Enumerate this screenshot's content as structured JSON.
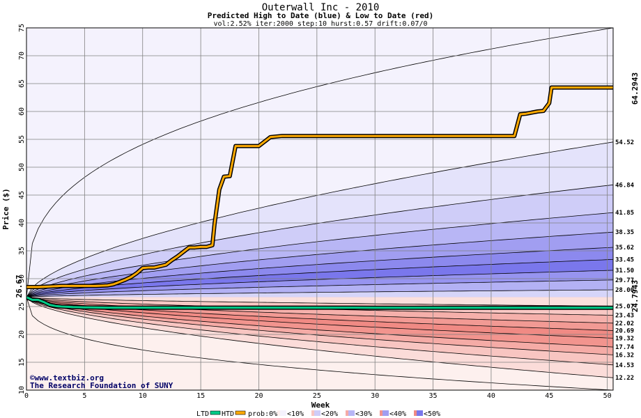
{
  "chart_data": {
    "type": "area",
    "title": "Outerwall Inc - 2010",
    "subtitle": "Predicted High to Date (blue) &  Low to Date (red)",
    "params": "vol:2.52% iter:2000 step:10 hurst:0.57 drift:0.07/0",
    "xlabel": "Week",
    "ylabel": "Price ($)",
    "xlim": [
      0,
      50.5
    ],
    "ylim": [
      10,
      75
    ],
    "xticks": [
      0,
      5,
      10,
      15,
      20,
      25,
      30,
      35,
      40,
      45,
      50
    ],
    "yticks": [
      10,
      15,
      20,
      25,
      30,
      35,
      40,
      45,
      50,
      55,
      60,
      65,
      70,
      75
    ],
    "grid": true,
    "start_price": 26.67,
    "start_label": "26.67",
    "high_to_date_label": "64.2943",
    "low_to_date_label": "24.7943",
    "percentile_labels": [
      "54.52",
      "46.84",
      "41.85",
      "38.35",
      "35.62",
      "33.45",
      "31.50",
      "29.77",
      "28.00",
      "25.07",
      "23.43",
      "22.02",
      "20.69",
      "19.32",
      "17.74",
      "16.32",
      "14.53",
      "12.22"
    ],
    "upper_bands": [
      {
        "name": "p1",
        "end": 75.0,
        "shape": 0.35,
        "color": "#f4f2fd"
      },
      {
        "name": "p2",
        "end": 54.52,
        "shape": 0.6,
        "color": "#e4e3fb"
      },
      {
        "name": "p3",
        "end": 46.84,
        "shape": 0.6,
        "color": "#cfcdf8"
      },
      {
        "name": "p4",
        "end": 41.85,
        "shape": 0.6,
        "color": "#b8b6f5"
      },
      {
        "name": "p5",
        "end": 38.35,
        "shape": 0.6,
        "color": "#a19ef1"
      },
      {
        "name": "p6",
        "end": 35.62,
        "shape": 0.6,
        "color": "#8c89ee"
      },
      {
        "name": "p7",
        "end": 33.45,
        "shape": 0.6,
        "color": "#7a77ec"
      },
      {
        "name": "p8",
        "end": 31.5,
        "shape": 0.6,
        "color": "#9794f0"
      },
      {
        "name": "p9",
        "end": 29.77,
        "shape": 0.6,
        "color": "#b3b1f4"
      },
      {
        "name": "p10",
        "end": 28.0,
        "shape": 0.6,
        "color": "#d6d5f9"
      }
    ],
    "lower_bands": [
      {
        "name": "q1",
        "end": 10.0,
        "shape": 0.35,
        "color": "#fdf0ee"
      },
      {
        "name": "q2",
        "end": 12.22,
        "shape": 0.6,
        "color": "#fbdcd9"
      },
      {
        "name": "q3",
        "end": 14.53,
        "shape": 0.6,
        "color": "#f8c5c1"
      },
      {
        "name": "q4",
        "end": 16.32,
        "shape": 0.6,
        "color": "#f5aba6"
      },
      {
        "name": "q5",
        "end": 17.74,
        "shape": 0.6,
        "color": "#f2948e"
      },
      {
        "name": "q6",
        "end": 19.32,
        "shape": 0.6,
        "color": "#f08a84"
      },
      {
        "name": "q7",
        "end": 20.69,
        "shape": 0.6,
        "color": "#f29a94"
      },
      {
        "name": "q8",
        "end": 22.02,
        "shape": 0.6,
        "color": "#f5b0ab"
      },
      {
        "name": "q9",
        "end": 23.43,
        "shape": 0.6,
        "color": "#f8c8c4"
      },
      {
        "name": "q10",
        "end": 25.07,
        "shape": 0.6,
        "color": "#fbe0dd"
      }
    ],
    "series": [
      {
        "name": "HTD",
        "color": "#ffaa00",
        "x": [
          0,
          1,
          2,
          3,
          4,
          5,
          6,
          7,
          7.5,
          8,
          8.5,
          9,
          9.5,
          10,
          10.5,
          11,
          12,
          12.5,
          13,
          13.5,
          14,
          14.5,
          15,
          15.5,
          16,
          16.2,
          16.6,
          17,
          17.5,
          18,
          18.5,
          19,
          20,
          21,
          22,
          25,
          30,
          35,
          38,
          40,
          42,
          42.5,
          43,
          44,
          44.5,
          45,
          45.2,
          45.5,
          46,
          48,
          50.5
        ],
        "y": [
          28.5,
          28.5,
          28.6,
          28.7,
          28.7,
          28.7,
          28.7,
          28.8,
          29.0,
          29.4,
          29.8,
          30.3,
          31.0,
          31.9,
          32.0,
          32.0,
          32.5,
          33.3,
          34.0,
          34.8,
          35.6,
          35.6,
          35.7,
          35.7,
          36.0,
          40.0,
          46.0,
          48.3,
          48.4,
          53.8,
          53.8,
          53.8,
          53.8,
          55.4,
          55.6,
          55.6,
          55.6,
          55.6,
          55.6,
          55.6,
          55.6,
          59.5,
          59.6,
          60.0,
          60.1,
          61.5,
          64.3,
          64.3,
          64.3,
          64.3,
          64.3
        ]
      },
      {
        "name": "LTD",
        "color": "#00cc88",
        "x": [
          0,
          0.5,
          1,
          1.5,
          2,
          2.5,
          3,
          4,
          5,
          7,
          10,
          15,
          20,
          25,
          30,
          35,
          40,
          45,
          50.5
        ],
        "y": [
          26.67,
          26.2,
          26.2,
          25.8,
          25.3,
          25.1,
          25.0,
          24.9,
          24.85,
          24.8,
          24.8,
          24.8,
          24.8,
          24.8,
          24.79,
          24.79,
          24.79,
          24.79,
          24.79
        ]
      }
    ],
    "legend": {
      "placement": "bottom",
      "ltd_label": "LTD",
      "htd_label": "HTD",
      "prob_label": "prob:0%",
      "buckets": [
        "<10%",
        "<20%",
        "<30%",
        "<40%",
        "<50%"
      ],
      "bucket_colors": [
        [
          "#fdf0ee",
          "#f4f2fd"
        ],
        [
          "#f8c5c1",
          "#cfcdf8"
        ],
        [
          "#f5aba6",
          "#b8b6f5"
        ],
        [
          "#f2948e",
          "#a19ef1"
        ],
        [
          "#f08a84",
          "#7a77ec"
        ]
      ]
    }
  },
  "credits": {
    "website": "©www.textbiz.org",
    "org": "The Research Foundation of SUNY"
  },
  "colors": {
    "grid": "#808080",
    "frame": "#000000",
    "start_label": "#006633",
    "htd_label": "#997700",
    "ltd_label": "#009966"
  }
}
